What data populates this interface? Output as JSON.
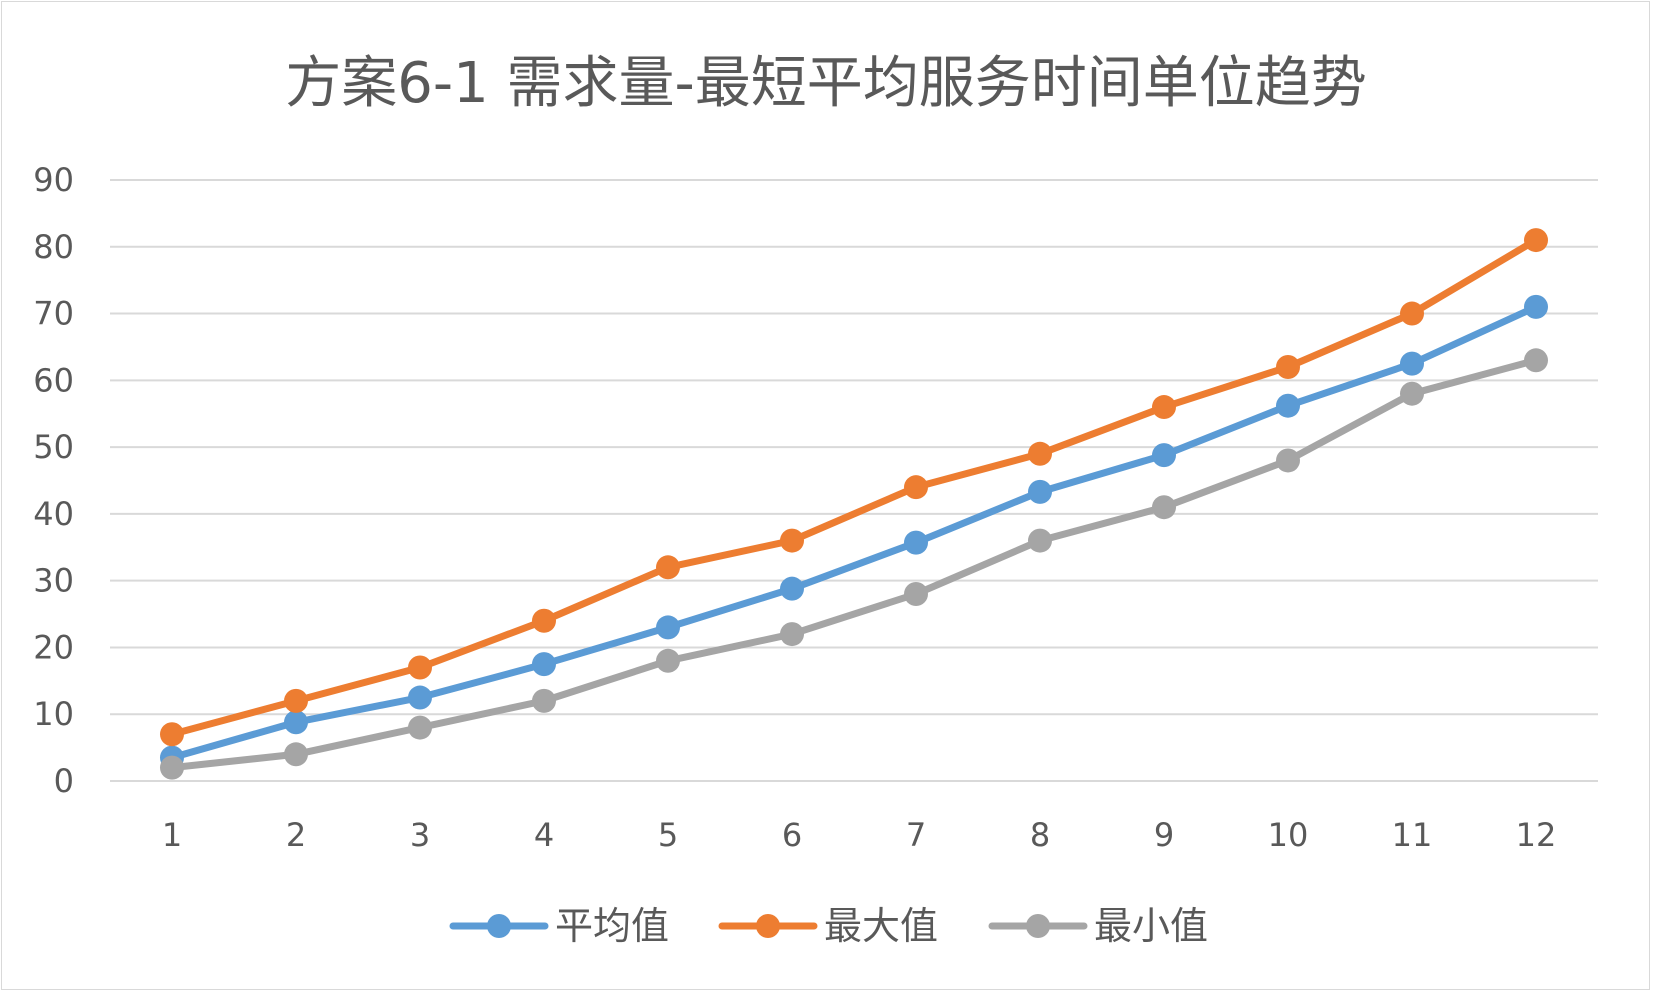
{
  "chart_data": {
    "type": "line",
    "title": "方案6-1 需求量-最短平均服务时间单位趋势",
    "xlabel": "",
    "ylabel": "",
    "categories": [
      "1",
      "2",
      "3",
      "4",
      "5",
      "6",
      "7",
      "8",
      "9",
      "10",
      "11",
      "12"
    ],
    "ylim": [
      0,
      90
    ],
    "yticks": [
      "0",
      "10",
      "20",
      "30",
      "40",
      "50",
      "60",
      "70",
      "80",
      "90"
    ],
    "grid": true,
    "legend_position": "bottom",
    "series": [
      {
        "name": "平均值",
        "color": "#5b9bd5",
        "values": [
          3.5,
          8.8,
          12.5,
          17.5,
          23,
          28.8,
          35.7,
          43.3,
          48.8,
          56.2,
          62.5,
          71
        ]
      },
      {
        "name": "最大值",
        "color": "#ed7d31",
        "values": [
          7,
          12,
          17,
          24,
          32,
          36,
          44,
          49,
          56,
          62,
          70,
          81
        ]
      },
      {
        "name": "最小值",
        "color": "#a5a5a5",
        "values": [
          2,
          4,
          8,
          12,
          18,
          22,
          28,
          36,
          41,
          48,
          58,
          63
        ]
      }
    ]
  }
}
